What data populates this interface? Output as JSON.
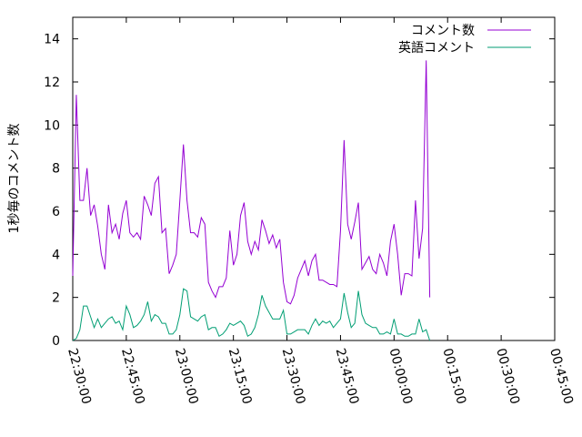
{
  "chart_data": {
    "type": "line",
    "ylabel": "1秒毎のコメント数",
    "ylim": [
      0,
      15
    ],
    "yticks": [
      0,
      2,
      4,
      6,
      8,
      10,
      12,
      14
    ],
    "xlim": [
      "22:30:00",
      "00:45:00"
    ],
    "xticks": [
      "22:30:00",
      "22:45:00",
      "23:00:00",
      "23:15:00",
      "23:30:00",
      "23:45:00",
      "00:00:00",
      "00:15:00",
      "00:30:00",
      "00:45:00"
    ],
    "grid": false,
    "legend_position": "top-right",
    "series": [
      {
        "name": "コメント数",
        "color": "#9400d3",
        "points": [
          [
            "22:30:00",
            3.0
          ],
          [
            "22:31:00",
            11.4
          ],
          [
            "22:32:00",
            6.5
          ],
          [
            "22:33:00",
            6.5
          ],
          [
            "22:34:00",
            8.0
          ],
          [
            "22:35:00",
            5.8
          ],
          [
            "22:36:00",
            6.3
          ],
          [
            "22:37:00",
            5.3
          ],
          [
            "22:38:00",
            4.0
          ],
          [
            "22:39:00",
            3.3
          ],
          [
            "22:40:00",
            6.3
          ],
          [
            "22:41:00",
            5.0
          ],
          [
            "22:42:00",
            5.4
          ],
          [
            "22:43:00",
            4.7
          ],
          [
            "22:44:00",
            5.9
          ],
          [
            "22:45:00",
            6.5
          ],
          [
            "22:46:00",
            5.0
          ],
          [
            "22:47:00",
            4.8
          ],
          [
            "22:48:00",
            5.0
          ],
          [
            "22:49:00",
            4.7
          ],
          [
            "22:50:00",
            6.7
          ],
          [
            "22:51:00",
            6.3
          ],
          [
            "22:52:00",
            5.8
          ],
          [
            "22:53:00",
            7.3
          ],
          [
            "22:54:00",
            7.6
          ],
          [
            "22:55:00",
            5.0
          ],
          [
            "22:56:00",
            5.2
          ],
          [
            "22:57:00",
            3.1
          ],
          [
            "22:58:00",
            3.5
          ],
          [
            "22:59:00",
            4.0
          ],
          [
            "23:00:00",
            6.5
          ],
          [
            "23:01:00",
            9.1
          ],
          [
            "23:02:00",
            6.5
          ],
          [
            "23:03:00",
            5.0
          ],
          [
            "23:04:00",
            5.0
          ],
          [
            "23:05:00",
            4.8
          ],
          [
            "23:06:00",
            5.7
          ],
          [
            "23:07:00",
            5.4
          ],
          [
            "23:08:00",
            2.7
          ],
          [
            "23:09:00",
            2.3
          ],
          [
            "23:10:00",
            2.0
          ],
          [
            "23:11:00",
            2.5
          ],
          [
            "23:12:00",
            2.5
          ],
          [
            "23:13:00",
            2.9
          ],
          [
            "23:14:00",
            5.1
          ],
          [
            "23:15:00",
            3.5
          ],
          [
            "23:16:00",
            4.0
          ],
          [
            "23:17:00",
            5.8
          ],
          [
            "23:18:00",
            6.4
          ],
          [
            "23:19:00",
            4.6
          ],
          [
            "23:20:00",
            4.0
          ],
          [
            "23:21:00",
            4.6
          ],
          [
            "23:22:00",
            4.2
          ],
          [
            "23:23:00",
            5.6
          ],
          [
            "23:24:00",
            5.1
          ],
          [
            "23:25:00",
            4.5
          ],
          [
            "23:26:00",
            4.9
          ],
          [
            "23:27:00",
            4.3
          ],
          [
            "23:28:00",
            4.7
          ],
          [
            "23:29:00",
            2.7
          ],
          [
            "23:30:00",
            1.8
          ],
          [
            "23:31:00",
            1.7
          ],
          [
            "23:32:00",
            2.1
          ],
          [
            "23:33:00",
            2.9
          ],
          [
            "23:34:00",
            3.3
          ],
          [
            "23:35:00",
            3.7
          ],
          [
            "23:36:00",
            3.0
          ],
          [
            "23:37:00",
            3.7
          ],
          [
            "23:38:00",
            4.0
          ],
          [
            "23:39:00",
            2.8
          ],
          [
            "23:40:00",
            2.8
          ],
          [
            "23:41:00",
            2.7
          ],
          [
            "23:42:00",
            2.6
          ],
          [
            "23:43:00",
            2.6
          ],
          [
            "23:44:00",
            2.5
          ],
          [
            "23:45:00",
            5.1
          ],
          [
            "23:46:00",
            9.3
          ],
          [
            "23:47:00",
            5.4
          ],
          [
            "23:48:00",
            4.7
          ],
          [
            "23:49:00",
            5.5
          ],
          [
            "23:50:00",
            6.4
          ],
          [
            "23:51:00",
            3.3
          ],
          [
            "23:52:00",
            3.6
          ],
          [
            "23:53:00",
            3.9
          ],
          [
            "23:54:00",
            3.3
          ],
          [
            "23:55:00",
            3.1
          ],
          [
            "23:56:00",
            4.0
          ],
          [
            "23:57:00",
            3.6
          ],
          [
            "23:58:00",
            3.0
          ],
          [
            "23:59:00",
            4.6
          ],
          [
            "00:00:00",
            5.4
          ],
          [
            "00:01:00",
            4.0
          ],
          [
            "00:02:00",
            2.1
          ],
          [
            "00:03:00",
            3.1
          ],
          [
            "00:04:00",
            3.1
          ],
          [
            "00:05:00",
            3.0
          ],
          [
            "00:06:00",
            6.5
          ],
          [
            "00:07:00",
            3.8
          ],
          [
            "00:08:00",
            5.2
          ],
          [
            "00:09:00",
            13.0
          ],
          [
            "00:10:00",
            2.0
          ]
        ]
      },
      {
        "name": "英語コメント",
        "color": "#009e73",
        "points": [
          [
            "22:30:00",
            0.0
          ],
          [
            "22:31:00",
            0.1
          ],
          [
            "22:32:00",
            0.5
          ],
          [
            "22:33:00",
            1.6
          ],
          [
            "22:34:00",
            1.6
          ],
          [
            "22:35:00",
            1.1
          ],
          [
            "22:36:00",
            0.6
          ],
          [
            "22:37:00",
            1.0
          ],
          [
            "22:38:00",
            0.6
          ],
          [
            "22:39:00",
            0.8
          ],
          [
            "22:40:00",
            1.0
          ],
          [
            "22:41:00",
            1.1
          ],
          [
            "22:42:00",
            0.8
          ],
          [
            "22:43:00",
            0.9
          ],
          [
            "22:44:00",
            0.5
          ],
          [
            "22:45:00",
            1.6
          ],
          [
            "22:46:00",
            1.2
          ],
          [
            "22:47:00",
            0.6
          ],
          [
            "22:48:00",
            0.7
          ],
          [
            "22:49:00",
            0.9
          ],
          [
            "22:50:00",
            1.2
          ],
          [
            "22:51:00",
            1.8
          ],
          [
            "22:52:00",
            0.9
          ],
          [
            "22:53:00",
            1.2
          ],
          [
            "22:54:00",
            1.1
          ],
          [
            "22:55:00",
            0.8
          ],
          [
            "22:56:00",
            0.8
          ],
          [
            "22:57:00",
            0.3
          ],
          [
            "22:58:00",
            0.3
          ],
          [
            "22:59:00",
            0.5
          ],
          [
            "23:00:00",
            1.2
          ],
          [
            "23:01:00",
            2.4
          ],
          [
            "23:02:00",
            2.3
          ],
          [
            "23:03:00",
            1.1
          ],
          [
            "23:04:00",
            1.0
          ],
          [
            "23:05:00",
            0.9
          ],
          [
            "23:06:00",
            1.1
          ],
          [
            "23:07:00",
            1.2
          ],
          [
            "23:08:00",
            0.5
          ],
          [
            "23:09:00",
            0.6
          ],
          [
            "23:10:00",
            0.6
          ],
          [
            "23:11:00",
            0.2
          ],
          [
            "23:12:00",
            0.3
          ],
          [
            "23:13:00",
            0.5
          ],
          [
            "23:14:00",
            0.8
          ],
          [
            "23:15:00",
            0.7
          ],
          [
            "23:16:00",
            0.8
          ],
          [
            "23:17:00",
            0.9
          ],
          [
            "23:18:00",
            0.7
          ],
          [
            "23:19:00",
            0.2
          ],
          [
            "23:20:00",
            0.3
          ],
          [
            "23:21:00",
            0.6
          ],
          [
            "23:22:00",
            1.2
          ],
          [
            "23:23:00",
            2.1
          ],
          [
            "23:24:00",
            1.6
          ],
          [
            "23:25:00",
            1.3
          ],
          [
            "23:26:00",
            1.0
          ],
          [
            "23:27:00",
            1.0
          ],
          [
            "23:28:00",
            1.0
          ],
          [
            "23:29:00",
            1.4
          ],
          [
            "23:30:00",
            0.3
          ],
          [
            "23:31:00",
            0.3
          ],
          [
            "23:32:00",
            0.4
          ],
          [
            "23:33:00",
            0.5
          ],
          [
            "23:34:00",
            0.5
          ],
          [
            "23:35:00",
            0.5
          ],
          [
            "23:36:00",
            0.3
          ],
          [
            "23:37:00",
            0.7
          ],
          [
            "23:38:00",
            1.0
          ],
          [
            "23:39:00",
            0.7
          ],
          [
            "23:40:00",
            0.9
          ],
          [
            "23:41:00",
            0.8
          ],
          [
            "23:42:00",
            0.9
          ],
          [
            "23:43:00",
            0.6
          ],
          [
            "23:44:00",
            0.8
          ],
          [
            "23:45:00",
            1.0
          ],
          [
            "23:46:00",
            2.2
          ],
          [
            "23:47:00",
            1.3
          ],
          [
            "23:48:00",
            0.6
          ],
          [
            "23:49:00",
            0.8
          ],
          [
            "23:50:00",
            2.3
          ],
          [
            "23:51:00",
            1.2
          ],
          [
            "23:52:00",
            0.8
          ],
          [
            "23:53:00",
            0.7
          ],
          [
            "23:54:00",
            0.6
          ],
          [
            "23:55:00",
            0.6
          ],
          [
            "23:56:00",
            0.3
          ],
          [
            "23:57:00",
            0.3
          ],
          [
            "23:58:00",
            0.4
          ],
          [
            "23:59:00",
            0.3
          ],
          [
            "00:00:00",
            1.0
          ],
          [
            "00:01:00",
            0.3
          ],
          [
            "00:02:00",
            0.3
          ],
          [
            "00:03:00",
            0.2
          ],
          [
            "00:04:00",
            0.2
          ],
          [
            "00:05:00",
            0.3
          ],
          [
            "00:06:00",
            0.3
          ],
          [
            "00:07:00",
            1.0
          ],
          [
            "00:08:00",
            0.4
          ],
          [
            "00:09:00",
            0.5
          ],
          [
            "00:10:00",
            0.0
          ]
        ]
      }
    ]
  }
}
